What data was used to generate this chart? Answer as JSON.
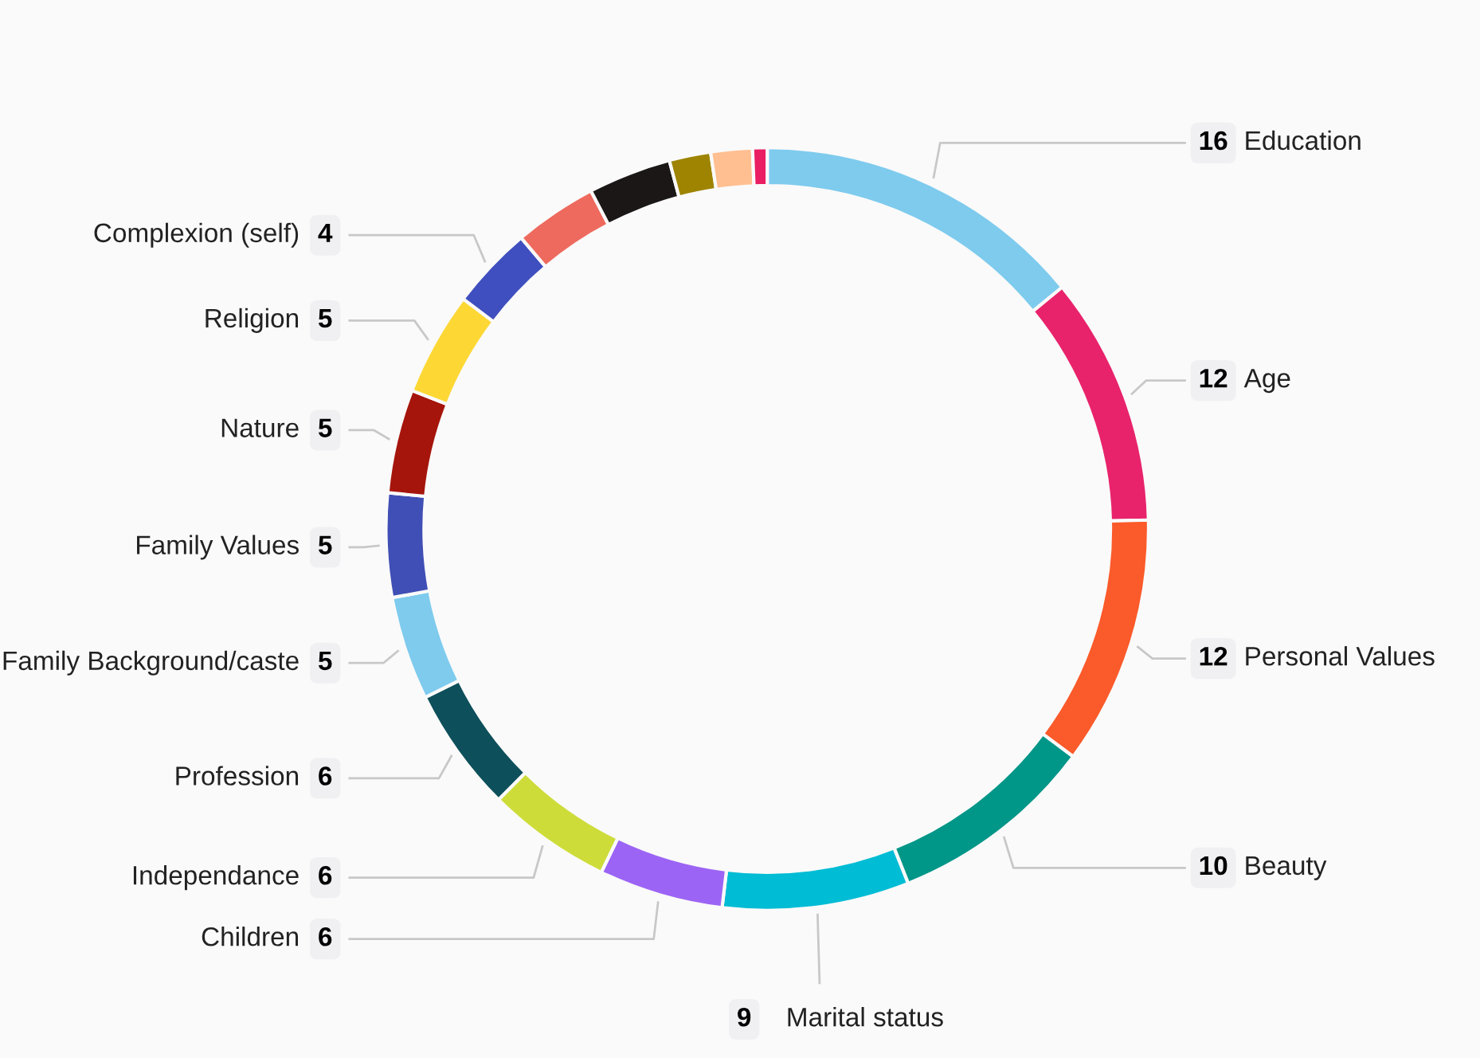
{
  "chart_data": {
    "type": "donut",
    "categories": [
      "Education",
      "Age",
      "Personal Values",
      "Beauty",
      "Marital status",
      "Children",
      "Independance",
      "Profession",
      "Family Background/caste",
      "Family Values",
      "Nature",
      "Religion",
      "Complexion (self)",
      null,
      null,
      null,
      null,
      null
    ],
    "values": [
      16,
      12,
      12,
      10,
      9,
      6,
      6,
      6,
      5,
      5,
      5,
      5,
      4,
      4,
      4,
      2,
      2,
      0.7
    ],
    "value_labels": [
      "16",
      "12",
      "12",
      "10",
      "9",
      "6",
      "6",
      "6",
      "5",
      "5",
      "5",
      "5",
      "4",
      null,
      null,
      null,
      null,
      null
    ],
    "colors": [
      "#7ecbee",
      "#e8236b",
      "#fb5a2a",
      "#009688",
      "#00bcd4",
      "#9c64f4",
      "#cddc39",
      "#0d4f5a",
      "#7ecbee",
      "#3f4fb5",
      "#a5150c",
      "#fdd835",
      "#3f4fbf",
      "#ee6a5e",
      "#1a1716",
      "#9e8400",
      "#ffbf90",
      "#e91e63"
    ]
  }
}
